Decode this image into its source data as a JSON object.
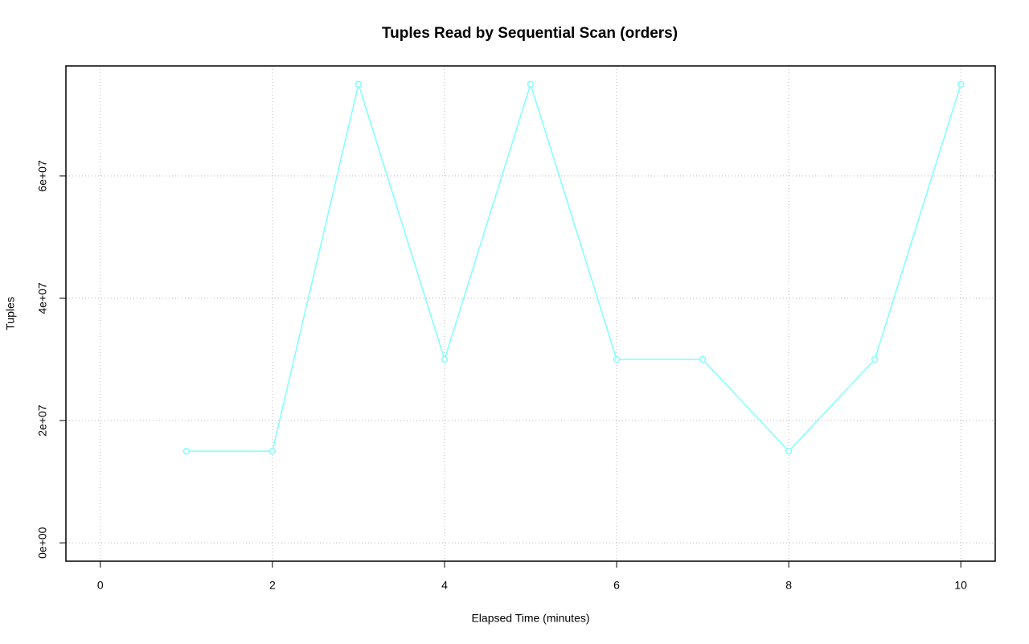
{
  "chart_data": {
    "type": "line",
    "title": "Tuples Read by Sequential Scan (orders)",
    "x_label": "Elapsed Time (minutes)",
    "y_label": "Tuples",
    "x": [
      1,
      2,
      3,
      4,
      5,
      6,
      7,
      8,
      9,
      10
    ],
    "series": [
      {
        "name": "orders",
        "color": "#7fffff",
        "values": [
          15000000,
          15000000,
          75000000,
          30000000,
          75000000,
          30000000,
          30000000,
          15000000,
          30000000,
          75000000
        ]
      }
    ],
    "xlim": [
      -0.4,
      10.4
    ],
    "xticks": [
      0,
      2,
      4,
      6,
      8,
      10
    ],
    "ylim": [
      -3000000,
      78000000
    ],
    "yticks": [
      {
        "value": 0,
        "label": "0e+00"
      },
      {
        "value": 20000000,
        "label": "2e+07"
      },
      {
        "value": 40000000,
        "label": "4e+07"
      },
      {
        "value": 60000000,
        "label": "6e+07"
      }
    ],
    "grid": true
  }
}
